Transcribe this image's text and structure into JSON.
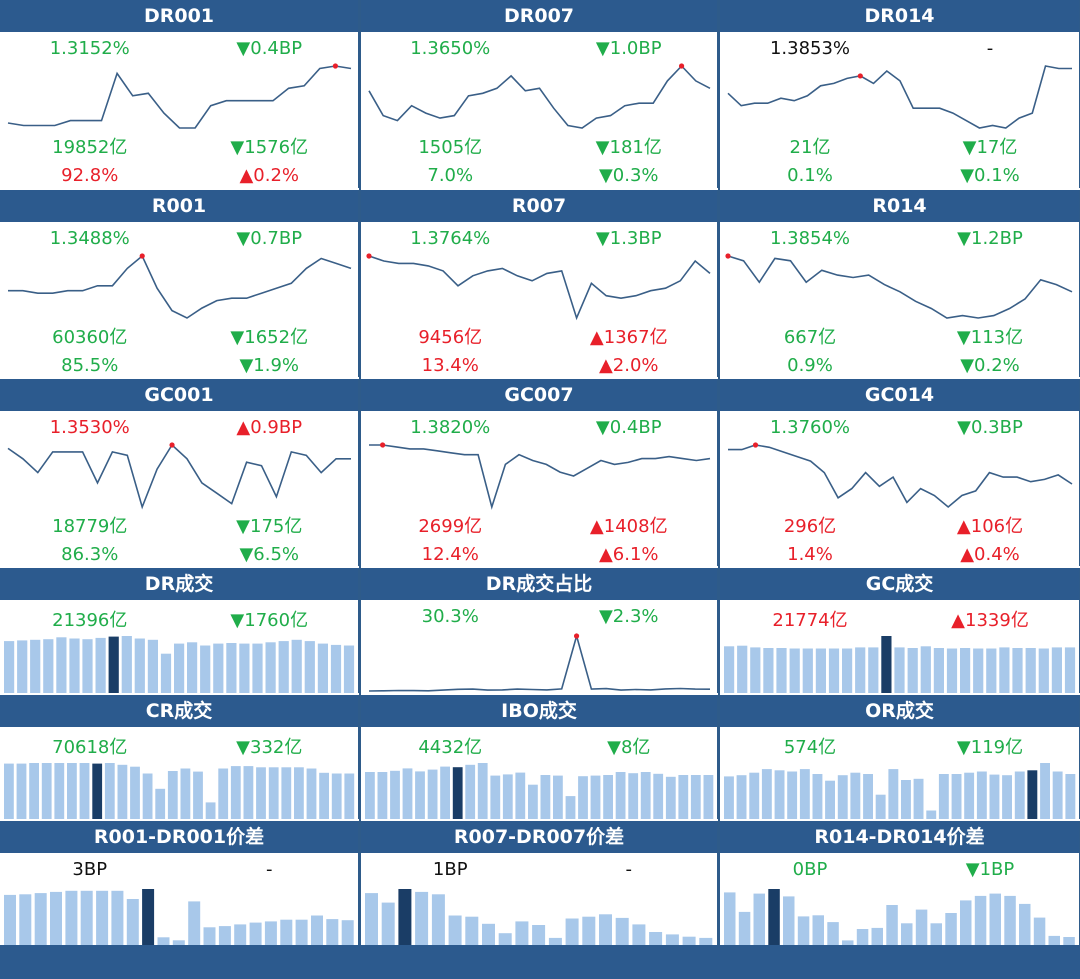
{
  "colors": {
    "header_bg": "#2c5a8e",
    "up": "#e8202a",
    "down": "#20ad4a",
    "line": "#3a5f87",
    "bar": "#a8c8ea",
    "bar_highlight": "#1a3d66"
  },
  "panels": [
    {
      "title": "DR001",
      "kind": "line",
      "rate": "1.3152%",
      "rate_color": "green",
      "chg": "▼0.4BP",
      "chg_color": "green",
      "vol": "19852亿",
      "vol_color": "green",
      "vchg": "▼1576亿",
      "vchg_color": "green",
      "pct": "92.8%",
      "pct_color": "red",
      "pchg": "▲0.2%",
      "pchg_color": "red"
    },
    {
      "title": "DR007",
      "kind": "line",
      "rate": "1.3650%",
      "rate_color": "green",
      "chg": "▼1.0BP",
      "chg_color": "green",
      "vol": "1505亿",
      "vol_color": "green",
      "vchg": "▼181亿",
      "vchg_color": "green",
      "pct": "7.0%",
      "pct_color": "green",
      "pchg": "▼0.3%",
      "pchg_color": "green"
    },
    {
      "title": "DR014",
      "kind": "line",
      "rate": "1.3853%",
      "rate_color": "black",
      "chg": "-",
      "chg_color": "black",
      "vol": "21亿",
      "vol_color": "green",
      "vchg": "▼17亿",
      "vchg_color": "green",
      "pct": "0.1%",
      "pct_color": "green",
      "pchg": "▼0.1%",
      "pchg_color": "green"
    },
    {
      "title": "R001",
      "kind": "line",
      "rate": "1.3488%",
      "rate_color": "green",
      "chg": "▼0.7BP",
      "chg_color": "green",
      "vol": "60360亿",
      "vol_color": "green",
      "vchg": "▼1652亿",
      "vchg_color": "green",
      "pct": "85.5%",
      "pct_color": "green",
      "pchg": "▼1.9%",
      "pchg_color": "green"
    },
    {
      "title": "R007",
      "kind": "line",
      "rate": "1.3764%",
      "rate_color": "green",
      "chg": "▼1.3BP",
      "chg_color": "green",
      "vol": "9456亿",
      "vol_color": "red",
      "vchg": "▲1367亿",
      "vchg_color": "red",
      "pct": "13.4%",
      "pct_color": "red",
      "pchg": "▲2.0%",
      "pchg_color": "red"
    },
    {
      "title": "R014",
      "kind": "line",
      "rate": "1.3854%",
      "rate_color": "green",
      "chg": "▼1.2BP",
      "chg_color": "green",
      "vol": "667亿",
      "vol_color": "green",
      "vchg": "▼113亿",
      "vchg_color": "green",
      "pct": "0.9%",
      "pct_color": "green",
      "pchg": "▼0.2%",
      "pchg_color": "green"
    },
    {
      "title": "GC001",
      "kind": "line",
      "rate": "1.3530%",
      "rate_color": "red",
      "chg": "▲0.9BP",
      "chg_color": "red",
      "vol": "18779亿",
      "vol_color": "green",
      "vchg": "▼175亿",
      "vchg_color": "green",
      "pct": "86.3%",
      "pct_color": "green",
      "pchg": "▼6.5%",
      "pchg_color": "green"
    },
    {
      "title": "GC007",
      "kind": "line",
      "rate": "1.3820%",
      "rate_color": "green",
      "chg": "▼0.4BP",
      "chg_color": "green",
      "vol": "2699亿",
      "vol_color": "red",
      "vchg": "▲1408亿",
      "vchg_color": "red",
      "pct": "12.4%",
      "pct_color": "red",
      "pchg": "▲6.1%",
      "pchg_color": "red"
    },
    {
      "title": "GC014",
      "kind": "line",
      "rate": "1.3760%",
      "rate_color": "green",
      "chg": "▼0.3BP",
      "chg_color": "green",
      "vol": "296亿",
      "vol_color": "red",
      "vchg": "▲106亿",
      "vchg_color": "red",
      "pct": "1.4%",
      "pct_color": "red",
      "pchg": "▲0.4%",
      "pchg_color": "red"
    },
    {
      "title": "DR成交",
      "kind": "bar",
      "v1": "21396亿",
      "v1_color": "green",
      "v2": "▼1760亿",
      "v2_color": "green"
    },
    {
      "title": "DR成交占比",
      "kind": "line2",
      "v1": "30.3%",
      "v1_color": "green",
      "v2": "▼2.3%",
      "v2_color": "green"
    },
    {
      "title": "GC成交",
      "kind": "bar",
      "v1": "21774亿",
      "v1_color": "red",
      "v2": "▲1339亿",
      "v2_color": "red"
    },
    {
      "title": "CR成交",
      "kind": "bar",
      "v1": "70618亿",
      "v1_color": "green",
      "v2": "▼332亿",
      "v2_color": "green"
    },
    {
      "title": "IBO成交",
      "kind": "bar",
      "v1": "4432亿",
      "v1_color": "green",
      "v2": "▼8亿",
      "v2_color": "green"
    },
    {
      "title": "OR成交",
      "kind": "bar",
      "v1": "574亿",
      "v1_color": "green",
      "v2": "▼119亿",
      "v2_color": "green"
    },
    {
      "title": "R001-DR001价差",
      "kind": "bar",
      "v1": "3BP",
      "v1_color": "black",
      "v2": "-",
      "v2_color": "black"
    },
    {
      "title": "R007-DR007价差",
      "kind": "bar",
      "v1": "1BP",
      "v1_color": "black",
      "v2": "-",
      "v2_color": "black"
    },
    {
      "title": "R014-DR014价差",
      "kind": "bar",
      "v1": "0BP",
      "v1_color": "green",
      "v2": "▼1BP",
      "v2_color": "green"
    }
  ],
  "chart_data": [
    {
      "type": "line",
      "name": "DR001",
      "values": [
        1.3,
        1.29,
        1.29,
        1.29,
        1.31,
        1.31,
        1.31,
        1.5,
        1.41,
        1.42,
        1.34,
        1.28,
        1.28,
        1.37,
        1.39,
        1.39,
        1.39,
        1.39,
        1.44,
        1.45,
        1.52,
        1.53,
        1.52
      ],
      "highlight_index": 21
    },
    {
      "type": "line",
      "name": "DR007",
      "values": [
        1.48,
        1.38,
        1.36,
        1.42,
        1.39,
        1.37,
        1.38,
        1.46,
        1.47,
        1.49,
        1.54,
        1.48,
        1.49,
        1.41,
        1.34,
        1.33,
        1.37,
        1.38,
        1.42,
        1.43,
        1.43,
        1.52,
        1.58,
        1.52,
        1.49
      ],
      "highlight_index": 22
    },
    {
      "type": "line",
      "name": "DR014",
      "values": [
        1.48,
        1.43,
        1.44,
        1.44,
        1.46,
        1.45,
        1.47,
        1.51,
        1.52,
        1.54,
        1.55,
        1.52,
        1.57,
        1.53,
        1.42,
        1.42,
        1.42,
        1.4,
        1.37,
        1.34,
        1.35,
        1.34,
        1.38,
        1.4,
        1.59,
        1.58,
        1.58
      ],
      "highlight_index": 10
    },
    {
      "type": "line",
      "name": "R001",
      "values": [
        1.28,
        1.28,
        1.27,
        1.27,
        1.28,
        1.28,
        1.3,
        1.3,
        1.37,
        1.42,
        1.29,
        1.2,
        1.17,
        1.21,
        1.24,
        1.25,
        1.25,
        1.27,
        1.29,
        1.31,
        1.37,
        1.41,
        1.39,
        1.37
      ],
      "highlight_index": 9
    },
    {
      "type": "line",
      "name": "R007",
      "values": [
        1.55,
        1.53,
        1.52,
        1.52,
        1.51,
        1.49,
        1.43,
        1.47,
        1.49,
        1.5,
        1.47,
        1.45,
        1.48,
        1.49,
        1.3,
        1.44,
        1.39,
        1.38,
        1.39,
        1.41,
        1.42,
        1.45,
        1.53,
        1.48
      ],
      "highlight_index": 0
    },
    {
      "type": "line",
      "name": "R014",
      "values": [
        1.6,
        1.58,
        1.49,
        1.59,
        1.58,
        1.49,
        1.54,
        1.52,
        1.51,
        1.52,
        1.48,
        1.45,
        1.41,
        1.38,
        1.34,
        1.35,
        1.34,
        1.35,
        1.38,
        1.42,
        1.5,
        1.48,
        1.45
      ],
      "highlight_index": 0
    },
    {
      "type": "line",
      "name": "GC001",
      "values": [
        1.42,
        1.39,
        1.35,
        1.41,
        1.41,
        1.41,
        1.32,
        1.41,
        1.4,
        1.25,
        1.36,
        1.43,
        1.39,
        1.32,
        1.29,
        1.26,
        1.38,
        1.37,
        1.28,
        1.41,
        1.4,
        1.35,
        1.39,
        1.39
      ],
      "highlight_index": 11
    },
    {
      "type": "line",
      "name": "GC007",
      "values": [
        1.58,
        1.58,
        1.57,
        1.56,
        1.56,
        1.55,
        1.54,
        1.53,
        1.53,
        1.26,
        1.48,
        1.53,
        1.5,
        1.48,
        1.44,
        1.42,
        1.46,
        1.5,
        1.48,
        1.49,
        1.51,
        1.51,
        1.52,
        1.51,
        1.5,
        1.51
      ],
      "highlight_index": 1
    },
    {
      "type": "line",
      "name": "GC014",
      "values": [
        1.5,
        1.5,
        1.52,
        1.51,
        1.49,
        1.47,
        1.45,
        1.4,
        1.29,
        1.33,
        1.4,
        1.34,
        1.38,
        1.27,
        1.33,
        1.3,
        1.25,
        1.3,
        1.32,
        1.4,
        1.38,
        1.38,
        1.36,
        1.37,
        1.39,
        1.35
      ],
      "highlight_index": 2
    },
    {
      "type": "bar",
      "name": "DR成交",
      "values": [
        82,
        83,
        84,
        85,
        88,
        86,
        85,
        87,
        89,
        90,
        86,
        84,
        62,
        78,
        80,
        75,
        78,
        79,
        78,
        78,
        80,
        82,
        84,
        82,
        78,
        76,
        75
      ],
      "highlight_index": 8
    },
    {
      "type": "line",
      "name": "DR成交占比",
      "values": [
        2,
        2.2,
        2.5,
        2.4,
        2.2,
        3,
        3.8,
        4,
        3,
        3.2,
        4,
        3.6,
        3.2,
        4.2,
        60,
        4,
        4.5,
        3,
        3.6,
        3.2,
        4.2,
        4.6,
        4,
        3.9
      ],
      "highlight_index": 14
    },
    {
      "type": "bar",
      "name": "GC成交",
      "values": [
        82,
        83,
        80,
        79,
        79,
        78,
        78,
        78,
        78,
        78,
        80,
        80,
        100,
        80,
        79,
        82,
        79,
        78,
        79,
        78,
        78,
        80,
        79,
        79,
        78,
        80,
        80
      ],
      "highlight_index": 12
    },
    {
      "type": "bar",
      "name": "CR成交",
      "values": [
        90,
        90,
        91,
        91,
        91,
        91,
        91,
        90,
        91,
        88,
        85,
        74,
        49,
        78,
        82,
        77,
        27,
        82,
        86,
        86,
        84,
        84,
        84,
        84,
        82,
        75,
        74,
        74
      ],
      "highlight_index": 7
    },
    {
      "type": "bar",
      "name": "IBO成交",
      "values": [
        78,
        78,
        80,
        84,
        79,
        82,
        87,
        86,
        90,
        93,
        72,
        74,
        77,
        57,
        73,
        72,
        38,
        71,
        72,
        73,
        78,
        76,
        78,
        75,
        70,
        73,
        73,
        73
      ],
      "highlight_index": 7
    },
    {
      "type": "bar",
      "name": "OR成交",
      "values": [
        70,
        72,
        76,
        82,
        80,
        78,
        82,
        74,
        63,
        72,
        76,
        74,
        40,
        82,
        64,
        66,
        14,
        74,
        74,
        76,
        78,
        73,
        72,
        78,
        80,
        92,
        78,
        74
      ],
      "highlight_index": 24
    },
    {
      "type": "bar",
      "name": "R001-DR001价差",
      "values": [
        85,
        86,
        88,
        90,
        92,
        92,
        92,
        92,
        78,
        95,
        13,
        8,
        74,
        30,
        32,
        35,
        38,
        40,
        43,
        43,
        50,
        44,
        42
      ],
      "highlight_index": 9
    },
    {
      "type": "bar",
      "name": "R007-DR007价差",
      "values": [
        88,
        72,
        95,
        90,
        86,
        50,
        48,
        36,
        20,
        40,
        34,
        12,
        45,
        48,
        52,
        46,
        35,
        22,
        18,
        14,
        12
      ],
      "highlight_index": 2
    },
    {
      "type": "bar",
      "name": "R014-DR014价差",
      "values": [
        92,
        58,
        90,
        98,
        85,
        50,
        52,
        40,
        8,
        28,
        30,
        70,
        38,
        62,
        38,
        56,
        78,
        86,
        90,
        86,
        72,
        48,
        16,
        14
      ],
      "highlight_index": 3
    }
  ]
}
